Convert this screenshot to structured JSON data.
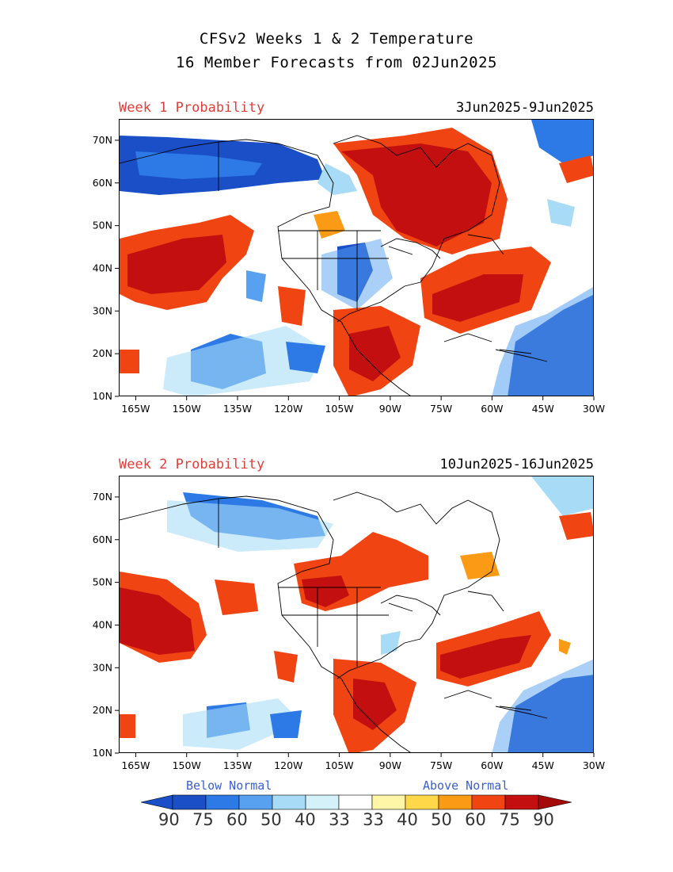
{
  "title_line1": "CFSv2 Weeks 1 & 2 Temperature",
  "title_line2": "16 Member Forecasts from 02Jun2025",
  "panels": [
    {
      "label": "Week 1 Probability",
      "dates": "3Jun2025-9Jun2025"
    },
    {
      "label": "Week 2 Probability",
      "dates": "10Jun2025-16Jun2025"
    }
  ],
  "map": {
    "lat_labels": [
      "70N",
      "60N",
      "50N",
      "40N",
      "30N",
      "20N",
      "10N"
    ],
    "lon_labels": [
      "165W",
      "150W",
      "135W",
      "120W",
      "105W",
      "90W",
      "75W",
      "60W",
      "45W",
      "30W"
    ],
    "lat_range": [
      10,
      75
    ],
    "lon_range": [
      -170,
      -30
    ]
  },
  "legend": {
    "below_label": "Below Normal",
    "above_label": "Above Normal",
    "values": [
      "90",
      "75",
      "60",
      "50",
      "40",
      "33",
      "33",
      "40",
      "50",
      "60",
      "75",
      "90"
    ],
    "colors": {
      "below_90": "#1a4fc8",
      "below_75": "#2d7ae6",
      "below_60": "#58a1f0",
      "below_50": "#a8dcf6",
      "below_40": "#d4f1fa",
      "near_normal": "#ffffff",
      "above_40": "#fff6a8",
      "above_50": "#ffd84a",
      "above_60": "#fb9a14",
      "above_75": "#f04412",
      "above_90": "#c30f0f"
    }
  }
}
